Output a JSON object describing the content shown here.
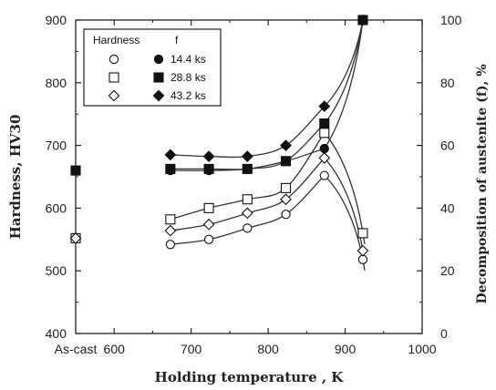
{
  "chart_data": {
    "type": "line",
    "xlabel": "Holding temperature , K",
    "ylabel_left": "Hardness, HV30",
    "ylabel_right": "Decomposition of austenite (f), %",
    "xlim": [
      550,
      1000
    ],
    "ylim_left": [
      400,
      900
    ],
    "ylim_right": [
      0,
      100
    ],
    "x_ticks": [
      {
        "value": 600,
        "label": "600"
      },
      {
        "value": 700,
        "label": "700"
      },
      {
        "value": 800,
        "label": "800"
      },
      {
        "value": 900,
        "label": "900"
      },
      {
        "value": 1000,
        "label": "1000"
      }
    ],
    "as_cast_label": "As-cast",
    "as_cast_x": 550,
    "y_ticks_left": [
      400,
      500,
      600,
      700,
      800,
      900
    ],
    "y_ticks_right": [
      0,
      20,
      40,
      60,
      80,
      100
    ],
    "grid": false,
    "legend": {
      "position": "top-left",
      "header_hardness": "Hardness",
      "header_f": "f"
    },
    "series": [
      {
        "name": "14.4 ks",
        "quantity": "Hardness",
        "marker": "circle",
        "filled": false,
        "x": [
          673,
          723,
          773,
          823,
          873,
          923
        ],
        "y": [
          542,
          550,
          568,
          590,
          652,
          518
        ]
      },
      {
        "name": "28.8 ks",
        "quantity": "Hardness",
        "marker": "square",
        "filled": false,
        "x": [
          673,
          723,
          773,
          823,
          873,
          923
        ],
        "y": [
          582,
          600,
          614,
          632,
          720,
          560
        ]
      },
      {
        "name": "43.2 ks",
        "quantity": "Hardness",
        "marker": "diamond",
        "filled": false,
        "x": [
          673,
          723,
          773,
          823,
          873,
          923
        ],
        "y": [
          564,
          574,
          592,
          614,
          680,
          532
        ]
      },
      {
        "name": "14.4 ks",
        "quantity": "f",
        "marker": "circle",
        "filled": true,
        "x": [
          673,
          723,
          773,
          823,
          873,
          923
        ],
        "y": [
          52,
          52,
          52.5,
          55,
          59,
          100
        ]
      },
      {
        "name": "28.8 ks",
        "quantity": "f",
        "marker": "square",
        "filled": true,
        "x": [
          673,
          723,
          773,
          823,
          873,
          923
        ],
        "y": [
          52.5,
          52.5,
          52.5,
          55,
          67,
          100
        ]
      },
      {
        "name": "43.2 ks",
        "quantity": "f",
        "marker": "diamond",
        "filled": true,
        "x": [
          673,
          723,
          773,
          823,
          873,
          923
        ],
        "y": [
          57,
          56.5,
          56.5,
          60,
          72.5,
          100
        ]
      }
    ],
    "as_cast_points": [
      {
        "marker": "circle",
        "filled": false,
        "quantity": "Hardness",
        "y": 552
      },
      {
        "marker": "square",
        "filled": false,
        "quantity": "Hardness",
        "y": 552
      },
      {
        "marker": "diamond",
        "filled": false,
        "quantity": "Hardness",
        "y": 552
      },
      {
        "marker": "square",
        "filled": true,
        "quantity": "Hardness",
        "y": 660
      }
    ]
  }
}
